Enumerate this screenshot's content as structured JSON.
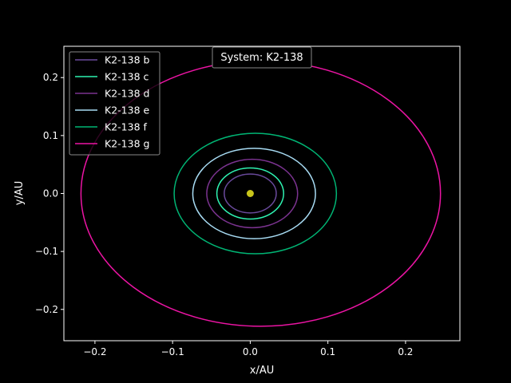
{
  "chart_data": {
    "type": "line",
    "title": "System: K2-138",
    "xlabel": "x/AU",
    "ylabel": "y/AU",
    "xlim": [
      -0.24,
      0.27
    ],
    "ylim": [
      -0.254,
      0.254
    ],
    "xticks": [
      -0.2,
      -0.1,
      0.0,
      0.1,
      0.2
    ],
    "xtick_labels": [
      "−0.2",
      "−0.1",
      "0.0",
      "0.1",
      "0.2"
    ],
    "yticks": [
      -0.2,
      -0.1,
      0.0,
      0.1,
      0.2
    ],
    "ytick_labels": [
      "−0.2",
      "−0.1",
      "0.0",
      "0.1",
      "0.2"
    ],
    "grid": false,
    "legend_position": "top-left",
    "background": "#000000",
    "star": {
      "x": 0.0,
      "y": 0.0,
      "color": "#c8c41a"
    },
    "series": [
      {
        "name": "K2-138 b",
        "color": "#6a4a9c",
        "x_min": -0.0335,
        "x_max": 0.0335,
        "y_min": -0.0335,
        "y_max": 0.0335
      },
      {
        "name": "K2-138 c",
        "color": "#2ef2b0",
        "x_min": -0.043,
        "x_max": 0.043,
        "y_min": -0.044,
        "y_max": 0.044
      },
      {
        "name": "K2-138 d",
        "color": "#7b3390",
        "x_min": -0.056,
        "x_max": 0.061,
        "y_min": -0.059,
        "y_max": 0.059
      },
      {
        "name": "K2-138 e",
        "color": "#a8dcf4",
        "x_min": -0.074,
        "x_max": 0.084,
        "y_min": -0.078,
        "y_max": 0.078
      },
      {
        "name": "K2-138 f",
        "color": "#00b574",
        "x_min": -0.098,
        "x_max": 0.111,
        "y_min": -0.104,
        "y_max": 0.104
      },
      {
        "name": "K2-138 g",
        "color": "#ec14a4",
        "x_min": -0.218,
        "x_max": 0.245,
        "y_min": -0.229,
        "y_max": 0.229
      }
    ]
  }
}
